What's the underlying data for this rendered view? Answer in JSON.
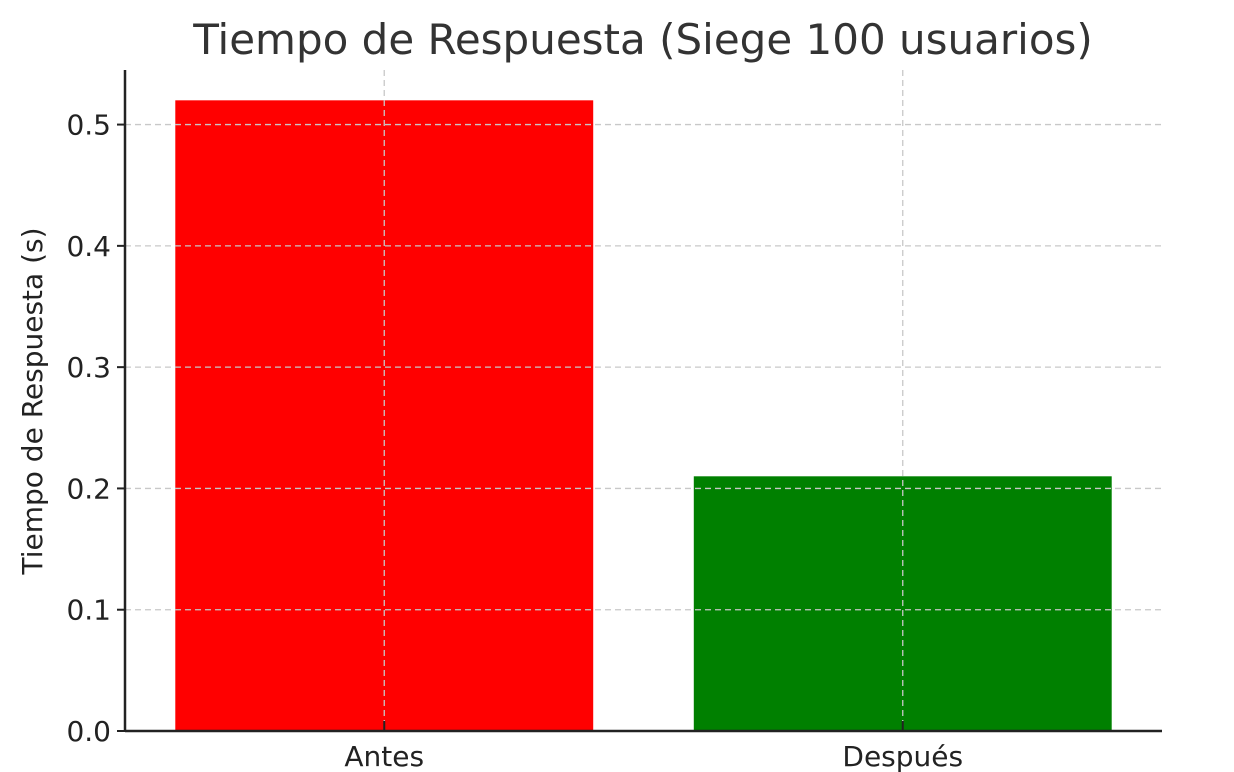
{
  "chart_data": {
    "type": "bar",
    "title": "Tiempo de Respuesta (Siege 100 usuarios)",
    "xlabel": "",
    "ylabel": "Tiempo de Respuesta (s)",
    "categories": [
      "Antes",
      "Después"
    ],
    "values": [
      0.52,
      0.21
    ],
    "colors": [
      "#ff0000",
      "#008000"
    ],
    "ylim": [
      0,
      0.545
    ],
    "yticks": [
      "0.0",
      "0.1",
      "0.2",
      "0.3",
      "0.4",
      "0.5"
    ],
    "grid": true,
    "legend": "none"
  }
}
